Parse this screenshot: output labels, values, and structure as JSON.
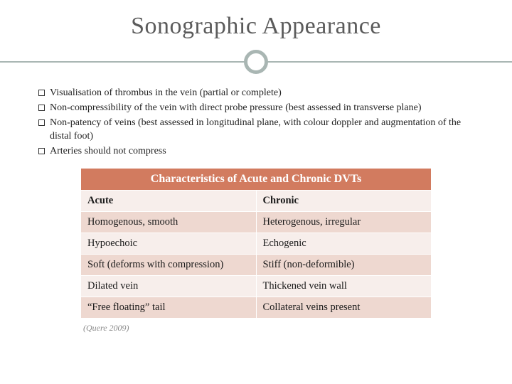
{
  "title": "Sonographic Appearance",
  "bullets": [
    "Visualisation of thrombus in the vein (partial or complete)",
    "Non-compressibility of the vein with direct probe pressure (best assessed in transverse plane)",
    "Non-patency of veins (best assessed in longitudinal plane, with colour doppler and augmentation of the distal foot)",
    "Arteries should not compress"
  ],
  "table": {
    "header": "Characteristics of Acute and Chronic DVTs",
    "columns": [
      "Acute",
      "Chronic"
    ],
    "rows": [
      [
        "Homogenous, smooth",
        "Heterogenous, irregular"
      ],
      [
        "Hypoechoic",
        "Echogenic"
      ],
      [
        "Soft (deforms with compression)",
        "Stiff (non-deformible)"
      ],
      [
        "Dilated vein",
        "Thickened vein wall"
      ],
      [
        "“Free floating” tail",
        "Collateral veins present"
      ]
    ],
    "header_bg": "#d27b5f",
    "header_color": "#ffffff",
    "row_plain_bg": "#f7eeeb",
    "row_alt_bg": "#eed8d0"
  },
  "citation": "(Quere 2009)",
  "accent_color": "#a9b6b3"
}
